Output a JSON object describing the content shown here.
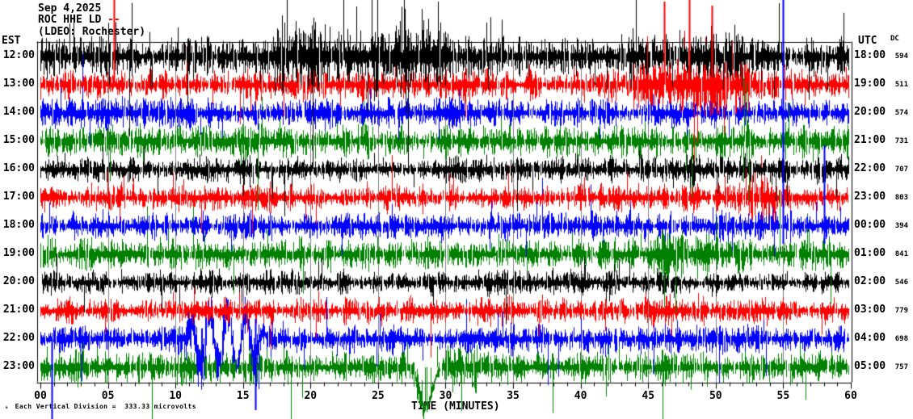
{
  "header": {
    "date": "Sep 4,2025",
    "station_line": "ROC HHE LD",
    "station_suffix": "--",
    "network_line": "(LDEO: Rochester)"
  },
  "axis": {
    "left_tz_label": "EST",
    "right_tz_label": "UTC",
    "dc_header": "DC",
    "x_axis_label": "TIME (MINUTES)",
    "x_tick_labels": [
      "00",
      "05",
      "10",
      "15",
      "20",
      "25",
      "30",
      "35",
      "40",
      "45",
      "50",
      "55",
      "60"
    ],
    "footnote_glyph": "ₘ",
    "footnote": "Each Vertical Division =  333.33 microvolts"
  },
  "chart_data": {
    "type": "seismogram",
    "style": "helicorder",
    "minutes_per_line": 60,
    "x_range_minutes": [
      0,
      60
    ],
    "vertical_division_microvolts": 333.33,
    "grid_interval_minutes": 5,
    "line_colors_cycle": [
      "black",
      "red",
      "blue",
      "green"
    ],
    "palette": {
      "black": "#000000",
      "red": "#ff0000",
      "blue": "#0000ff",
      "green": "#008000",
      "grid": "#808080"
    },
    "rows": [
      {
        "est": "12:00",
        "utc": "18:00",
        "dc": "594",
        "color": "black",
        "activity": {
          "amp": 12,
          "spike_prob": 0.07,
          "bursts": [
            [
              17.5,
              31,
              1.7
            ],
            [
              43,
              52,
              1.25
            ]
          ],
          "spikes": [
            [
              23.4,
              62,
              0
            ],
            [
              24.95,
              58,
              0
            ],
            [
              29.45,
              68,
              0
            ],
            [
              54.7,
              66,
              0
            ],
            [
              33.05,
              42,
              0
            ],
            [
              10.15,
              36,
              0
            ],
            [
              21.05,
              40,
              0
            ],
            [
              26.6,
              44,
              0
            ]
          ]
        }
      },
      {
        "est": "13:00",
        "utc": "19:00",
        "dc": "511",
        "color": "red",
        "activity": {
          "amp": 9,
          "spike_prob": 0.05,
          "bursts": [
            [
              43.5,
              52.5,
              2.1
            ]
          ],
          "spikes": [
            [
              5.44,
              105,
              0
            ],
            [
              46.2,
              103,
              0
            ],
            [
              48.05,
              105,
              0
            ],
            [
              49.7,
              98,
              0
            ],
            [
              44.9,
              60,
              0
            ],
            [
              51.2,
              55,
              0
            ]
          ]
        }
      },
      {
        "est": "14:00",
        "utc": "20:00",
        "dc": "574",
        "color": "blue",
        "activity": {
          "amp": 9,
          "spike_prob": 0.04,
          "bursts": [],
          "spikes": []
        }
      },
      {
        "est": "15:00",
        "utc": "21:00",
        "dc": "731",
        "color": "green",
        "activity": {
          "amp": 10,
          "spike_prob": 0.04,
          "bursts": [
            [
              51.6,
              52.8,
              1.4
            ]
          ],
          "spikes": [
            [
              52.1,
              80,
              0
            ],
            [
              52.3,
              72,
              0
            ]
          ]
        }
      },
      {
        "est": "16:00",
        "utc": "22:00",
        "dc": "707",
        "color": "black",
        "activity": {
          "amp": 8,
          "spike_prob": 0.05,
          "bursts": [
            [
              48,
              56,
              1.2
            ]
          ],
          "spikes": [
            [
              14.8,
              0,
              18
            ],
            [
              15.5,
              0,
              22
            ]
          ]
        }
      },
      {
        "est": "17:00",
        "utc": "23:00",
        "dc": "803",
        "color": "red",
        "activity": {
          "amp": 8.5,
          "spike_prob": 0.04,
          "bursts": [
            [
              51.5,
              54.5,
              1.7
            ]
          ],
          "spikes": [
            [
              52.2,
              36,
              0
            ],
            [
              52.9,
              32,
              0
            ],
            [
              53.6,
              28,
              0
            ]
          ]
        }
      },
      {
        "est": "18:00",
        "utc": "00:00",
        "dc": "394",
        "color": "blue",
        "activity": {
          "amp": 8.5,
          "spike_prob": 0.04,
          "bursts": [],
          "spikes": [
            [
              54.98,
              280,
              22
            ],
            [
              58.0,
              100,
              22
            ]
          ]
        }
      },
      {
        "est": "19:00",
        "utc": "01:00",
        "dc": "841",
        "color": "green",
        "activity": {
          "amp": 10,
          "spike_prob": 0.04,
          "bursts": [
            [
              46,
              49.5,
              1.55
            ]
          ],
          "spikes": [
            [
              54.73,
              78,
              0
            ]
          ]
        }
      },
      {
        "est": "20:00",
        "utc": "02:00",
        "dc": "546",
        "color": "black",
        "activity": {
          "amp": 7,
          "spike_prob": 0.05,
          "bursts": [
            [
              33,
              41,
              1.15
            ]
          ],
          "spikes": [
            [
              40.3,
              22,
              0
            ]
          ]
        }
      },
      {
        "est": "21:00",
        "utc": "03:00",
        "dc": "779",
        "color": "red",
        "activity": {
          "amp": 8.5,
          "spike_prob": 0.04,
          "bursts": [
            [
              44,
              50,
              1.15
            ]
          ],
          "spikes": []
        }
      },
      {
        "est": "22:00",
        "utc": "04:00",
        "dc": "698",
        "color": "blue",
        "activity": {
          "amp": 9,
          "spike_prob": 0.04,
          "bursts": [
            [
              10.6,
              17.2,
              1.9
            ]
          ],
          "event": {
            "type": "oscillation",
            "m0": 10.8,
            "m1": 16.9,
            "period": 1.35,
            "amp": 30
          },
          "spikes": [
            [
              0.85,
              0,
              100
            ],
            [
              15.9,
              25,
              88
            ],
            [
              16.15,
              18,
              62
            ],
            [
              21.2,
              52,
              12
            ]
          ]
        }
      },
      {
        "est": "23:00",
        "utc": "05:00",
        "dc": "757",
        "color": "green",
        "activity": {
          "amp": 10,
          "spike_prob": 0.05,
          "bursts": [
            [
              29.8,
              33.5,
              1.45
            ]
          ],
          "event": {
            "type": "dip",
            "m": 28.5,
            "width": 0.45,
            "depth": 52
          },
          "spikes": [
            [
              28.45,
              0,
              54
            ],
            [
              28.62,
              0,
              48
            ],
            [
              29.4,
              26,
              0
            ]
          ]
        }
      }
    ]
  }
}
